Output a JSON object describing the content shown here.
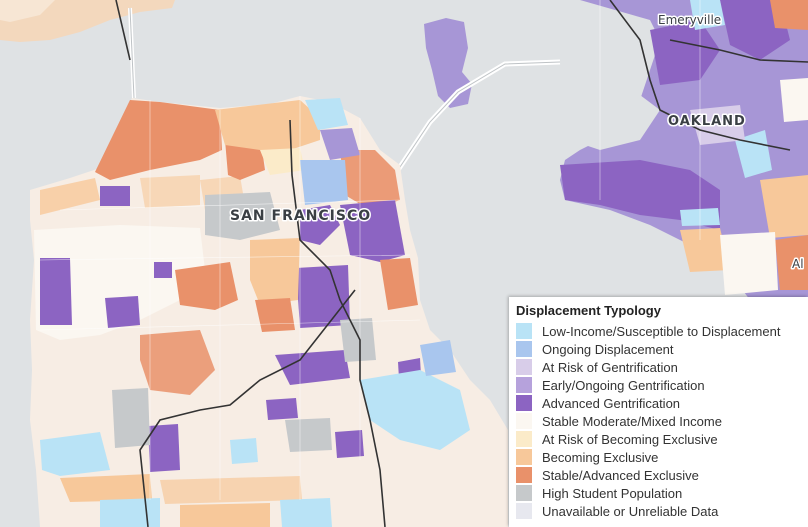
{
  "map": {
    "labels": {
      "emeryville": "Emeryville",
      "oakland": "OAKLAND",
      "san_francisco": "SAN FRANCISCO",
      "alameda_partial": "Al"
    }
  },
  "legend": {
    "title": "Displacement Typology",
    "items": [
      {
        "label": "Low-Income/Susceptible to Displacement",
        "color": "#b9e3f6"
      },
      {
        "label": "Ongoing Displacement",
        "color": "#a9c6ee"
      },
      {
        "label": "At Risk of Gentrification",
        "color": "#d8cde9"
      },
      {
        "label": "Early/Ongoing Gentrification",
        "color": "#b6a2dc"
      },
      {
        "label": "Advanced Gentrification",
        "color": "#8c64c2"
      },
      {
        "label": "Stable Moderate/Mixed Income",
        "color": "#fbf7f1"
      },
      {
        "label": "At Risk of Becoming Exclusive",
        "color": "#fbebc9"
      },
      {
        "label": "Becoming Exclusive",
        "color": "#f7c89a"
      },
      {
        "label": "Stable/Advanced Exclusive",
        "color": "#e9916a"
      },
      {
        "label": "High Student Population",
        "color": "#c6c9cb"
      },
      {
        "label": "Unavailable or Unreliable Data",
        "color": "#e7e8ef"
      }
    ]
  }
}
